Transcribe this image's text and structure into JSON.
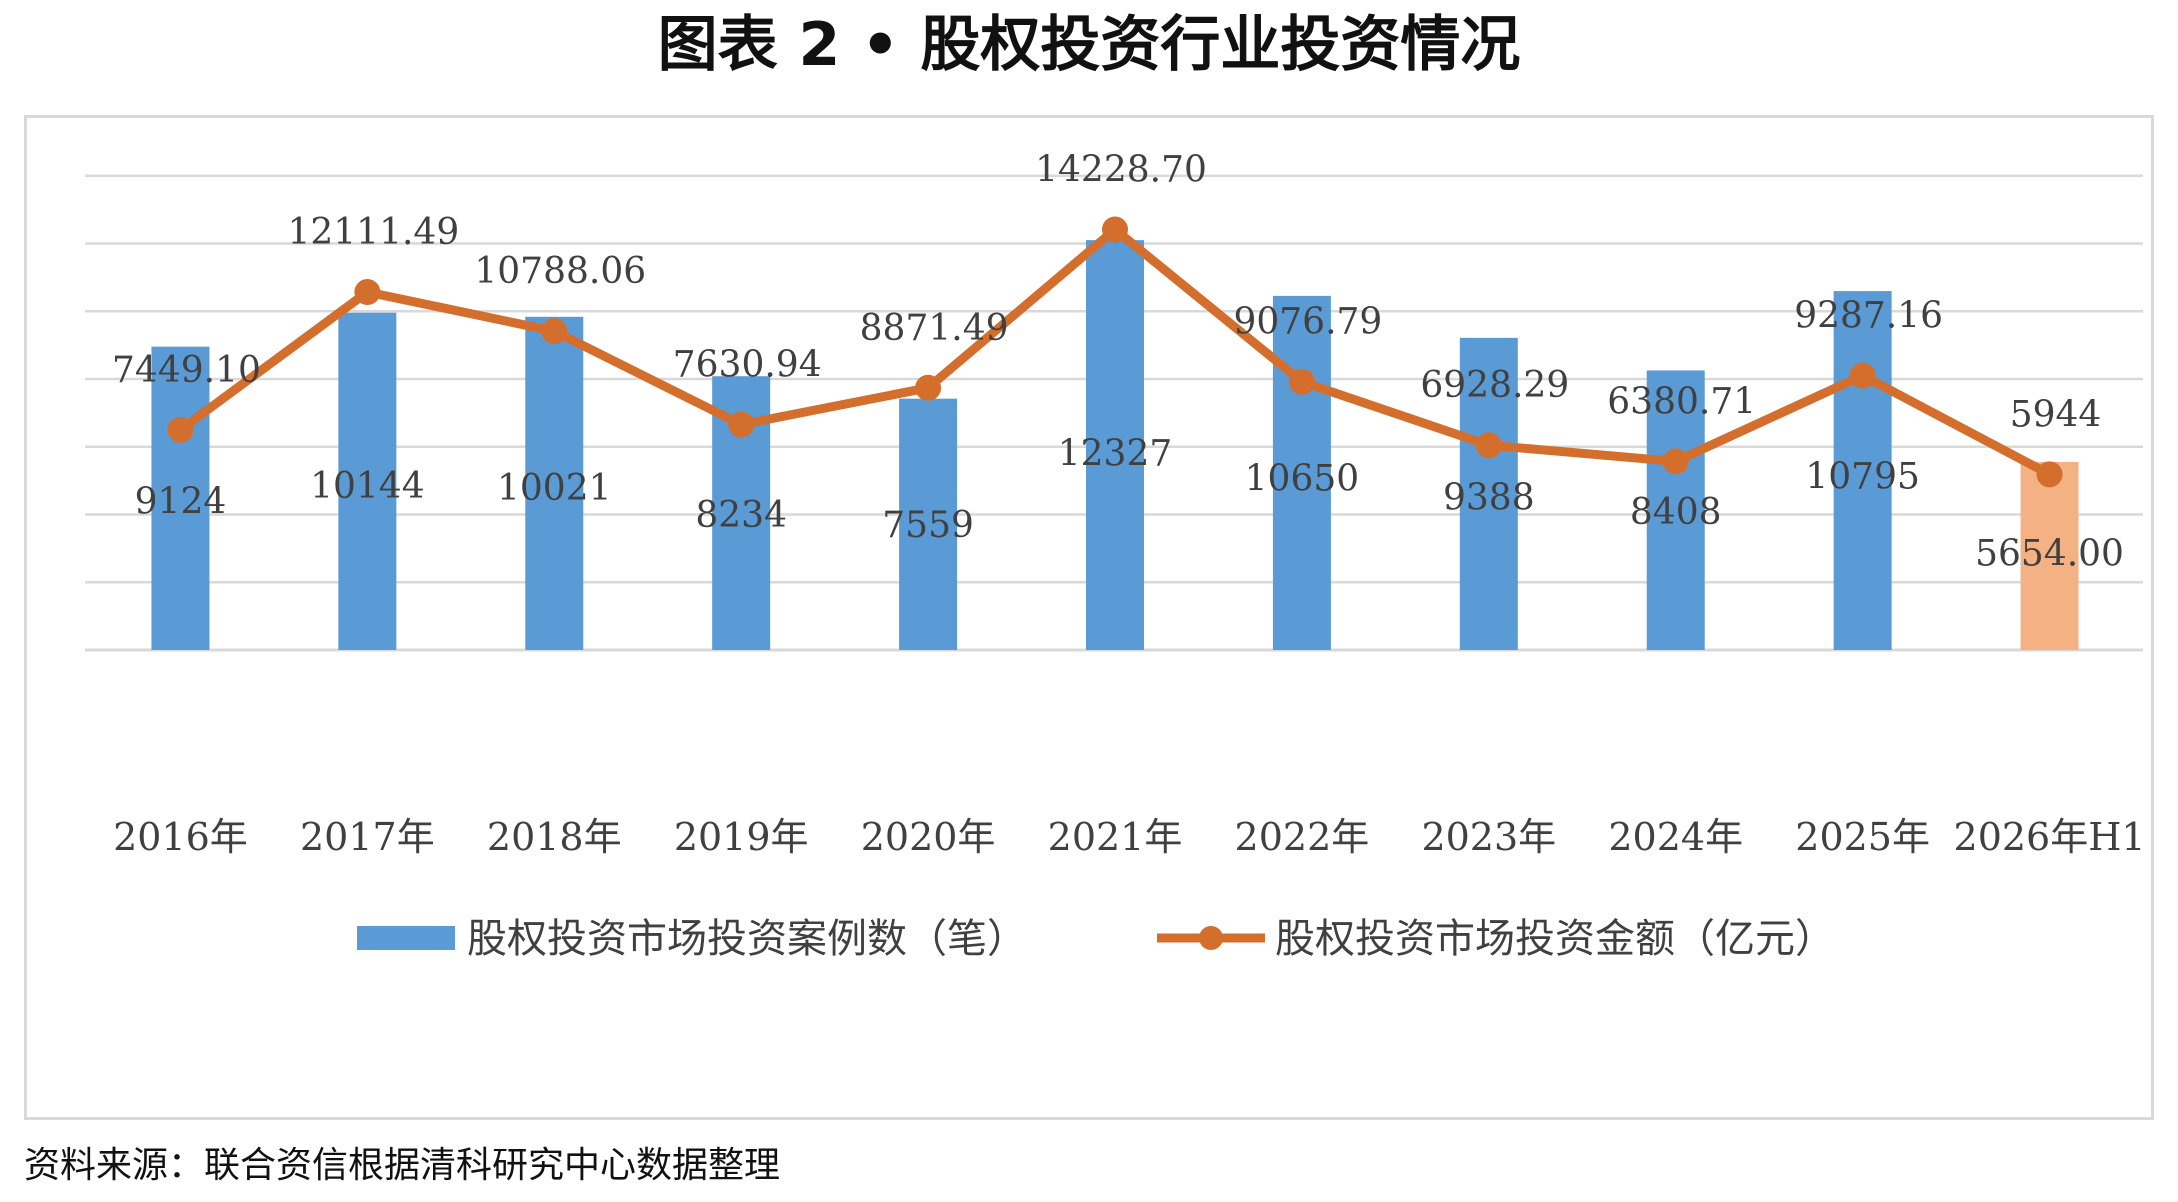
{
  "title": "图表 2 • 股权投资行业投资情况",
  "source": "资料来源：联合资信根据清科研究中心数据整理",
  "colors": {
    "bar": "#5b9bd5",
    "bar_highlight": "#f4b183",
    "line": "#d46e2c",
    "grid": "#d9d9d9",
    "text": "#404040"
  },
  "chart_data": {
    "type": "bar",
    "categories": [
      "2016年",
      "2017年",
      "2018年",
      "2019年",
      "2020年",
      "2021年",
      "2022年",
      "2023年",
      "2024年",
      "2025年",
      "2026年H1"
    ],
    "series": [
      {
        "name": "股权投资市场投资案例数（笔）",
        "type": "bar",
        "axis": "left",
        "values": [
          9124,
          10144,
          10021,
          8234,
          7559,
          12327,
          10650,
          9388,
          8408,
          10795,
          5654
        ],
        "labels": [
          "9124",
          "10144",
          "10021",
          "8234",
          "7559",
          "12327",
          "10650",
          "9388",
          "8408",
          "10795",
          "5654.00"
        ],
        "highlight_last": true
      },
      {
        "name": "股权投资市场投资金额（亿元）",
        "type": "line",
        "axis": "right",
        "values": [
          7449.1,
          12111.49,
          10788.06,
          7630.94,
          8871.49,
          14228.7,
          9076.79,
          6928.29,
          6380.71,
          9287.16,
          5944
        ],
        "labels": [
          "7449.10",
          "12111.49",
          "10788.06",
          "7630.94",
          "8871.49",
          "14228.70",
          "9076.79",
          "6928.29",
          "6380.71",
          "9287.16",
          "5944"
        ]
      }
    ],
    "ylim_left": [
      0,
      16000
    ],
    "ylim_right": [
      0,
      18000
    ],
    "grid": true,
    "legend": "bottom",
    "axes_tick_labels_shown": false
  }
}
